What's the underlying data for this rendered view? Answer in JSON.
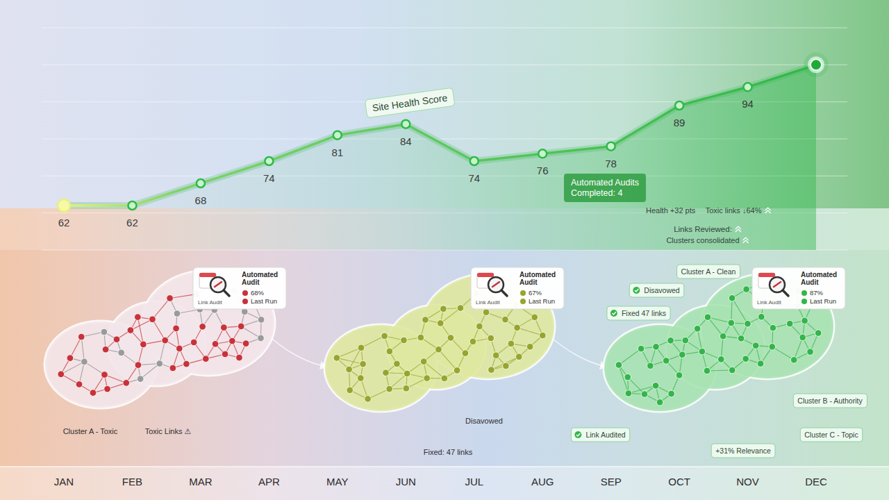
{
  "chart_data": {
    "type": "line",
    "title": "Site Health Score",
    "categories": [
      "JAN",
      "FEB",
      "MAR",
      "APR",
      "MAY",
      "JUN",
      "JUL",
      "AUG",
      "SEP",
      "OCT",
      "NOV",
      "DEC"
    ],
    "values": [
      62,
      62,
      68,
      74,
      81,
      84,
      74,
      76,
      78,
      89,
      94,
      100
    ],
    "value_labels": [
      "62",
      "62",
      "68",
      "74",
      "81",
      "84",
      "74",
      "76",
      "78",
      "89",
      "94",
      null
    ],
    "color": "#2fb84a",
    "marker": "circle",
    "ylim": [
      50,
      110
    ],
    "yticks": [
      50,
      60,
      70,
      80,
      90,
      100,
      110
    ],
    "grid": true,
    "tick_labels": "x",
    "data_labels": true,
    "annotations": [
      "Automated Audits Completed: 4",
      "Health +32 pts",
      "Toxic links ↓64%",
      "Links Reviewed:",
      "Clusters consolidated"
    ]
  },
  "clusters": [
    {
      "color": "#c8323a",
      "card": {
        "title": "Automated Audit",
        "caption": "Link Audit",
        "score": "68%",
        "status": "Last Run"
      },
      "labels": [
        "Cluster A - Toxic",
        "Toxic Links ⚠"
      ]
    },
    {
      "color": "#98a52c",
      "card": {
        "title": "Automated Audit",
        "caption": "Link Audit",
        "score": "67%",
        "status": "Last Run"
      },
      "labels": [
        "Disavowed",
        "Fixed: 47 links"
      ]
    },
    {
      "color": "#34b54a",
      "card": {
        "title": "Automated Audit",
        "caption": "Link Audit",
        "score": "87%",
        "status": "Last Run"
      },
      "labels": [
        "Cluster A - Clean",
        "Disavowed",
        "Fixed 47 links",
        "Link Audited",
        "+31% Relevance",
        "Cluster B - Authority",
        "Cluster C - Topic"
      ]
    }
  ]
}
